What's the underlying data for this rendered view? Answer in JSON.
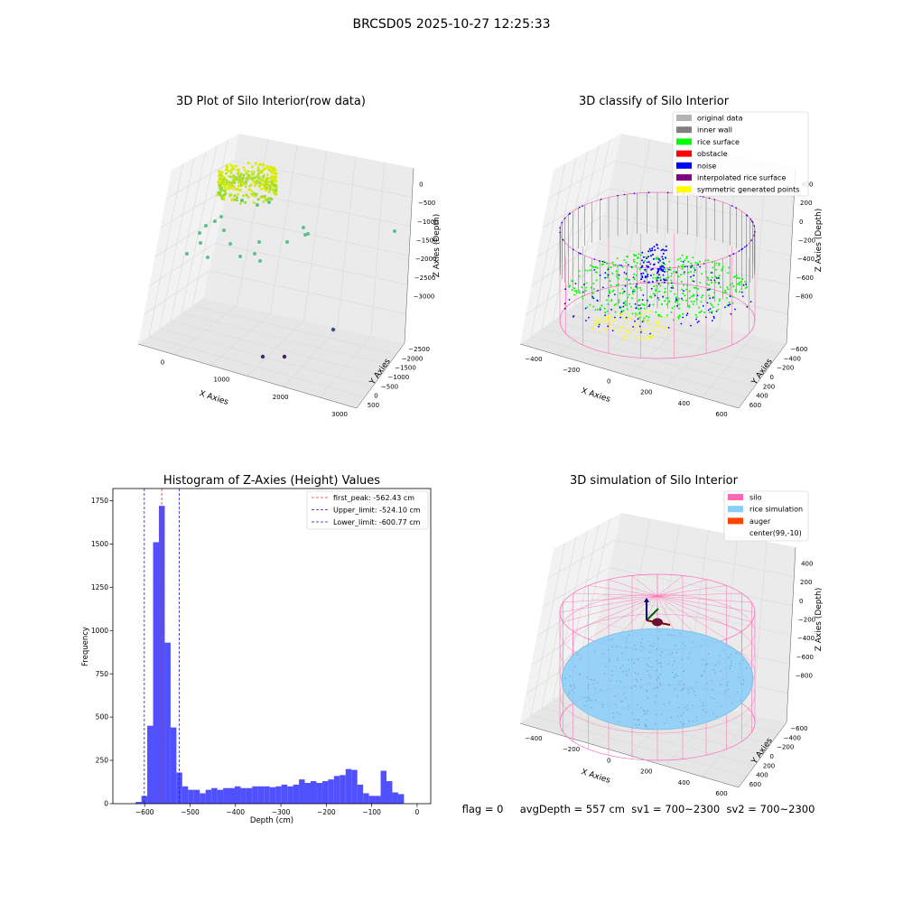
{
  "figure": {
    "suptitle": "BRCSD05 2025-10-27 12:25:33",
    "status_line": "flag = 0     avgDepth = 557 cm  sv1 = 700~2300  sv2 = 700~2300"
  },
  "colors": {
    "grey_pane": "#f2f2f2",
    "grid": "#dedede",
    "hist_bar": "#5050ff",
    "peak_line": "#e03030",
    "limit_line": "#1a1acc",
    "silo": "#ff69b4",
    "rice": "#87cefa",
    "auger": "#ff4500",
    "original": "#b3b3b3",
    "inner_wall": "#808080",
    "rice_surface": "#00ff00",
    "obstacle": "#ff0000",
    "noise": "#0000ff",
    "interpolated": "#800080",
    "symmetric": "#ffff00"
  },
  "chart_data": [
    {
      "type": "scatter",
      "title": "3D Plot of Silo Interior(row data)",
      "xlabel": "X Axies",
      "ylabel": "Y Axies",
      "zlabel": "Z Axies (Depth)",
      "x_ticks": [
        "0",
        "1000",
        "2000",
        "3000"
      ],
      "y_ticks": [
        "500",
        "0",
        "−500",
        "−1000",
        "−1500",
        "−2000",
        "−2500"
      ],
      "z_ticks": [
        "0",
        "−500",
        "−1000",
        "−1500",
        "−2000",
        "−2500",
        "−3000"
      ],
      "outliers": [
        {
          "x": 150,
          "y": -50,
          "z": -1700
        },
        {
          "x": 400,
          "y": -200,
          "z": -1900
        },
        {
          "x": 700,
          "y": 100,
          "z": -1500
        },
        {
          "x": 1100,
          "y": -300,
          "z": -1600
        },
        {
          "x": 1500,
          "y": -500,
          "z": -1700
        },
        {
          "x": 2100,
          "y": -600,
          "z": -1400
        },
        {
          "x": 2500,
          "y": -900,
          "z": -900
        },
        {
          "x": 2600,
          "y": -2300,
          "z": -2800
        },
        {
          "x": 1700,
          "y": -1600,
          "z": -3100
        },
        {
          "x": 1900,
          "y": -1800,
          "z": -3000
        }
      ]
    },
    {
      "type": "scatter",
      "title": "3D classify of Silo Interior",
      "xlabel": "X Axies",
      "ylabel": "Y Axies",
      "zlabel": "Z Axies (Depth)",
      "x_ticks": [
        "−400",
        "−200",
        "0",
        "200",
        "400",
        "600"
      ],
      "y_ticks": [
        "600",
        "400",
        "200",
        "0",
        "−200",
        "−400",
        "−600"
      ],
      "z_ticks": [
        "400",
        "200",
        "0",
        "−200",
        "−400",
        "−600",
        "−800"
      ],
      "legend": [
        "original data",
        "inner wall",
        "rice surface",
        "obstacle",
        "noise",
        "interpolated rice surface",
        "symmetric generated points"
      ]
    },
    {
      "type": "bar",
      "title": "Histogram of Z-Axies (Height) Values",
      "xlabel": "Depth (cm)",
      "ylabel": "Frequency",
      "xlim": [
        -670,
        30
      ],
      "ylim": [
        0,
        1820
      ],
      "x_ticks": [
        -600,
        -500,
        -400,
        -300,
        -200,
        -100,
        0
      ],
      "y_ticks": [
        0,
        250,
        500,
        750,
        1000,
        1250,
        1500,
        1750
      ],
      "bin_start": -620,
      "bin_width": 12.85,
      "values": [
        10,
        45,
        450,
        1510,
        1720,
        930,
        440,
        180,
        100,
        80,
        80,
        60,
        80,
        90,
        80,
        90,
        90,
        100,
        90,
        90,
        100,
        100,
        100,
        95,
        100,
        110,
        100,
        110,
        140,
        120,
        130,
        120,
        130,
        140,
        160,
        165,
        200,
        195,
        110,
        60,
        45,
        45,
        190,
        130,
        65,
        55
      ],
      "vlines": {
        "first_peak": -562.43,
        "upper": -524.1,
        "lower": -600.77
      },
      "legend": [
        "first_peak: -562.43 cm",
        "Upper_limit: -524.10 cm",
        "Lower_limit: -600.77 cm"
      ]
    },
    {
      "type": "scatter",
      "title": "3D simulation of Silo Interior",
      "xlabel": "X Axies",
      "ylabel": "Y Axies",
      "zlabel": "Z Axies (Depth)",
      "x_ticks": [
        "−400",
        "−200",
        "0",
        "200",
        "400",
        "600"
      ],
      "y_ticks": [
        "600",
        "400",
        "200",
        "0",
        "−200",
        "−400",
        "−600"
      ],
      "z_ticks": [
        "400",
        "200",
        "0",
        "−200",
        "−400",
        "−600",
        "−800"
      ],
      "legend": [
        "silo",
        "rice simulation",
        "auger",
        "center(99,-10)"
      ]
    }
  ]
}
